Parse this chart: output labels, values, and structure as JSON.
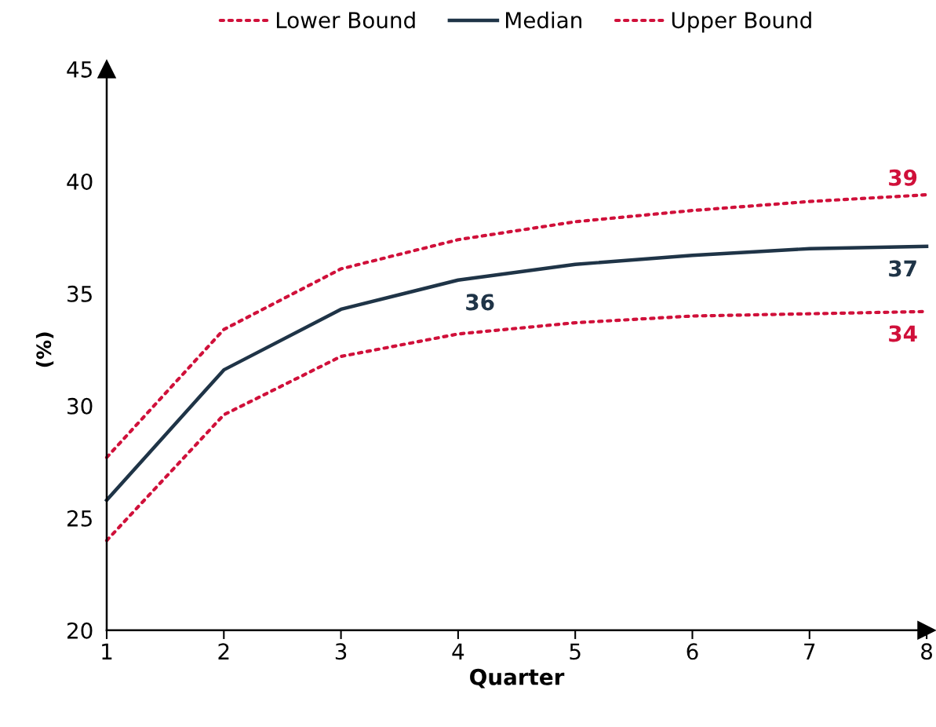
{
  "chart_data": {
    "type": "line",
    "xlabel": "Quarter",
    "ylabel": "(%)",
    "x": [
      1,
      2,
      3,
      4,
      5,
      6,
      7,
      8
    ],
    "series": [
      {
        "name": "Lower Bound",
        "color": "#d0103a",
        "line_style": "dotted",
        "values": [
          24.0,
          29.6,
          32.2,
          33.2,
          33.7,
          34.0,
          34.1,
          34.2
        ],
        "value_labels": [
          null,
          null,
          null,
          null,
          null,
          null,
          null,
          "34"
        ]
      },
      {
        "name": "Median",
        "color": "#1f3447",
        "line_style": "solid",
        "values": [
          25.8,
          31.6,
          34.3,
          35.6,
          36.3,
          36.7,
          37.0,
          37.1
        ],
        "value_labels": [
          null,
          null,
          null,
          "36",
          null,
          null,
          null,
          "37"
        ]
      },
      {
        "name": "Upper Bound",
        "color": "#d0103a",
        "line_style": "dotted",
        "values": [
          27.7,
          33.4,
          36.1,
          37.4,
          38.2,
          38.7,
          39.1,
          39.4
        ],
        "value_labels": [
          null,
          null,
          null,
          null,
          null,
          null,
          null,
          "39"
        ]
      }
    ],
    "xlim": [
      1,
      8
    ],
    "ylim": [
      20,
      45
    ],
    "xticks": [
      1,
      2,
      3,
      4,
      5,
      6,
      7,
      8
    ],
    "yticks": [
      20,
      25,
      30,
      35,
      40,
      45
    ],
    "grid": false,
    "legend": "top",
    "marker": "none"
  }
}
